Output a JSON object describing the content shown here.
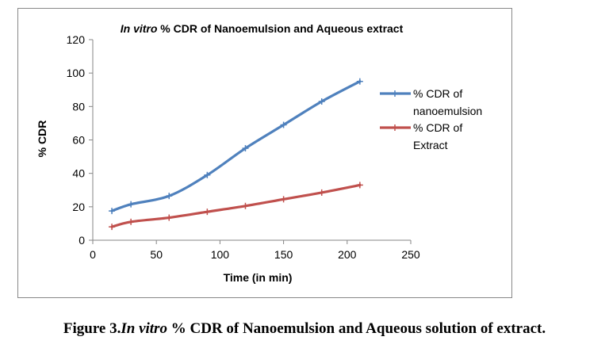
{
  "chart_data": {
    "type": "line",
    "title_italic": "In vitro",
    "title_rest": " % CDR of Nanoemulsion and Aqueous extract",
    "xlabel": "Time (in min)",
    "ylabel": "% CDR",
    "xlim": [
      0,
      250
    ],
    "ylim": [
      0,
      120
    ],
    "xticks": [
      0,
      50,
      100,
      150,
      200,
      250
    ],
    "yticks": [
      0,
      20,
      40,
      60,
      80,
      100,
      120
    ],
    "grid": false,
    "legend_position": "right",
    "series": [
      {
        "name_line1": "% CDR of",
        "name_line2": "nanoemulsion",
        "color": "#4F81BD",
        "x": [
          15,
          30,
          60,
          90,
          120,
          150,
          180,
          210
        ],
        "y": [
          17.5,
          21.5,
          26.5,
          39,
          55,
          69,
          83,
          95
        ]
      },
      {
        "name_line1": "% CDR of",
        "name_line2": "Extract",
        "color": "#C0504D",
        "x": [
          15,
          30,
          60,
          90,
          120,
          150,
          180,
          210
        ],
        "y": [
          8,
          11,
          13.5,
          17,
          20.5,
          24.5,
          28.5,
          33
        ]
      }
    ]
  },
  "caption": {
    "prefix": "Figure 3.",
    "italic": "In vitro",
    "rest": " % CDR of Nanoemulsion and Aqueous solution of extract."
  }
}
